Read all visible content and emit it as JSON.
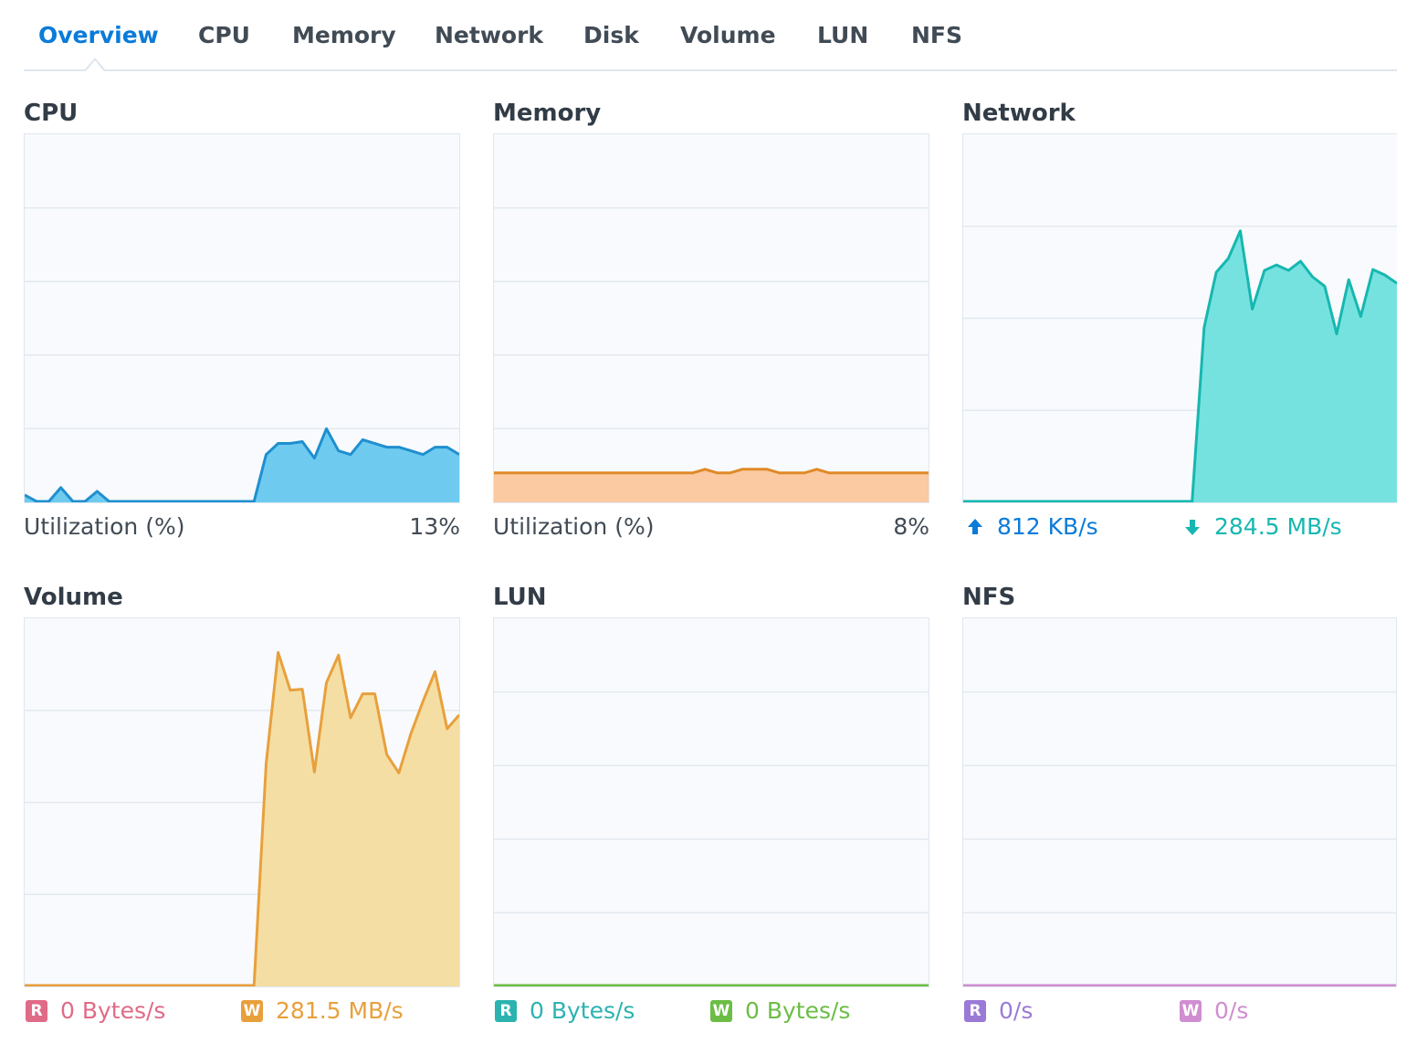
{
  "tabs": [
    {
      "label": "Overview",
      "active": true
    },
    {
      "label": "CPU"
    },
    {
      "label": "Memory"
    },
    {
      "label": "Network"
    },
    {
      "label": "Disk"
    },
    {
      "label": "Volume"
    },
    {
      "label": "LUN"
    },
    {
      "label": "NFS"
    }
  ],
  "panels": {
    "cpu": {
      "title": "CPU",
      "label": "Utilization  (%)",
      "value": "13%",
      "color": "#1f8fcf",
      "fill": "#6ecbef"
    },
    "memory": {
      "title": "Memory",
      "label": "Utilization  (%)",
      "value": "8%",
      "color": "#e08a28",
      "fill": "#fbc9a2"
    },
    "network": {
      "title": "Network",
      "upload_icon": "upload-arrow-icon",
      "upload": "812 KB/s",
      "upload_color": "#0a7bd9",
      "download_icon": "download-arrow-icon",
      "download": "284.5 MB/s",
      "download_color": "#16b7b0",
      "fill": "#76e2df"
    },
    "volume": {
      "title": "Volume",
      "read_badge": "R",
      "read": "0 Bytes/s",
      "read_color": "#e06b87",
      "write_badge": "W",
      "write": "281.5 MB/s",
      "write_color": "#e8a03c",
      "fill": "#f5dea3"
    },
    "lun": {
      "title": "LUN",
      "read_badge": "R",
      "read": "0 Bytes/s",
      "read_color": "#2cb3b0",
      "write_badge": "W",
      "write": "0 Bytes/s",
      "write_color": "#6cbd45"
    },
    "nfs": {
      "title": "NFS",
      "read_badge": "R",
      "read": "0/s",
      "read_color": "#9a7ad6",
      "write_badge": "W",
      "write": "0/s",
      "write_color": "#d08ed0"
    }
  },
  "chart_data": [
    {
      "type": "area",
      "id": "cpu",
      "ylim": [
        0,
        100
      ],
      "grid": true,
      "series": [
        {
          "values": [
            2,
            0,
            0,
            4,
            0,
            0,
            3,
            0,
            0,
            0,
            0,
            0,
            0,
            0,
            0,
            0,
            0,
            0,
            0,
            0,
            13,
            16,
            16,
            16.5,
            12,
            20,
            14,
            13,
            17,
            16,
            15,
            15,
            14,
            13,
            15,
            15,
            13
          ]
        }
      ]
    },
    {
      "type": "area",
      "id": "memory",
      "ylim": [
        0,
        100
      ],
      "grid": true,
      "series": [
        {
          "values": [
            8,
            8,
            8,
            8,
            8,
            8,
            8,
            8,
            8,
            8,
            8,
            8,
            8,
            8,
            8,
            8,
            8,
            9,
            8,
            8,
            9,
            9,
            9,
            8,
            8,
            8,
            9,
            8,
            8,
            8,
            8,
            8,
            8,
            8,
            8,
            8
          ]
        }
      ]
    },
    {
      "type": "area",
      "id": "network",
      "ylim": [
        0,
        400
      ],
      "grid": true,
      "series": [
        {
          "name": "upload",
          "values": [
            0,
            0,
            0,
            0,
            0,
            0,
            0,
            0,
            0,
            0,
            0,
            0,
            0,
            0,
            0,
            0,
            0,
            0,
            0,
            0,
            0,
            0,
            0,
            0,
            0,
            0,
            0,
            0,
            0,
            0,
            0,
            0,
            0,
            0,
            0,
            0,
            0
          ]
        },
        {
          "name": "download",
          "values": [
            0,
            0,
            0,
            0,
            0,
            0,
            0,
            0,
            0,
            0,
            0,
            0,
            0,
            0,
            0,
            0,
            0,
            0,
            0,
            0,
            190,
            250,
            265,
            295,
            210,
            252,
            258,
            252,
            262,
            245,
            235,
            183,
            242,
            202,
            253,
            247,
            238
          ]
        }
      ]
    },
    {
      "type": "area",
      "id": "volume",
      "ylim": [
        0,
        400
      ],
      "grid": true,
      "series": [
        {
          "name": "read",
          "values": [
            0,
            0,
            0,
            0,
            0,
            0,
            0,
            0,
            0,
            0,
            0,
            0,
            0,
            0,
            0,
            0,
            0,
            0,
            0,
            0,
            0,
            0,
            0,
            0,
            0,
            0,
            0,
            0,
            0,
            0,
            0,
            0,
            0,
            0,
            0,
            0,
            0
          ]
        },
        {
          "name": "write",
          "values": [
            0,
            0,
            0,
            0,
            0,
            0,
            0,
            0,
            0,
            0,
            0,
            0,
            0,
            0,
            0,
            0,
            0,
            0,
            0,
            0,
            242,
            363,
            322,
            323,
            233,
            330,
            360,
            292,
            318,
            318,
            252,
            232,
            275,
            310,
            342,
            280,
            295
          ]
        }
      ]
    },
    {
      "type": "area",
      "id": "lun",
      "ylim": [
        0,
        100
      ],
      "grid": true,
      "series": [
        {
          "name": "read",
          "values": [
            0,
            0
          ]
        },
        {
          "name": "write",
          "values": [
            0,
            0
          ]
        }
      ]
    },
    {
      "type": "area",
      "id": "nfs",
      "ylim": [
        0,
        100
      ],
      "grid": true,
      "series": [
        {
          "name": "read",
          "values": [
            0,
            0
          ]
        },
        {
          "name": "write",
          "values": [
            0,
            0
          ]
        }
      ]
    }
  ]
}
